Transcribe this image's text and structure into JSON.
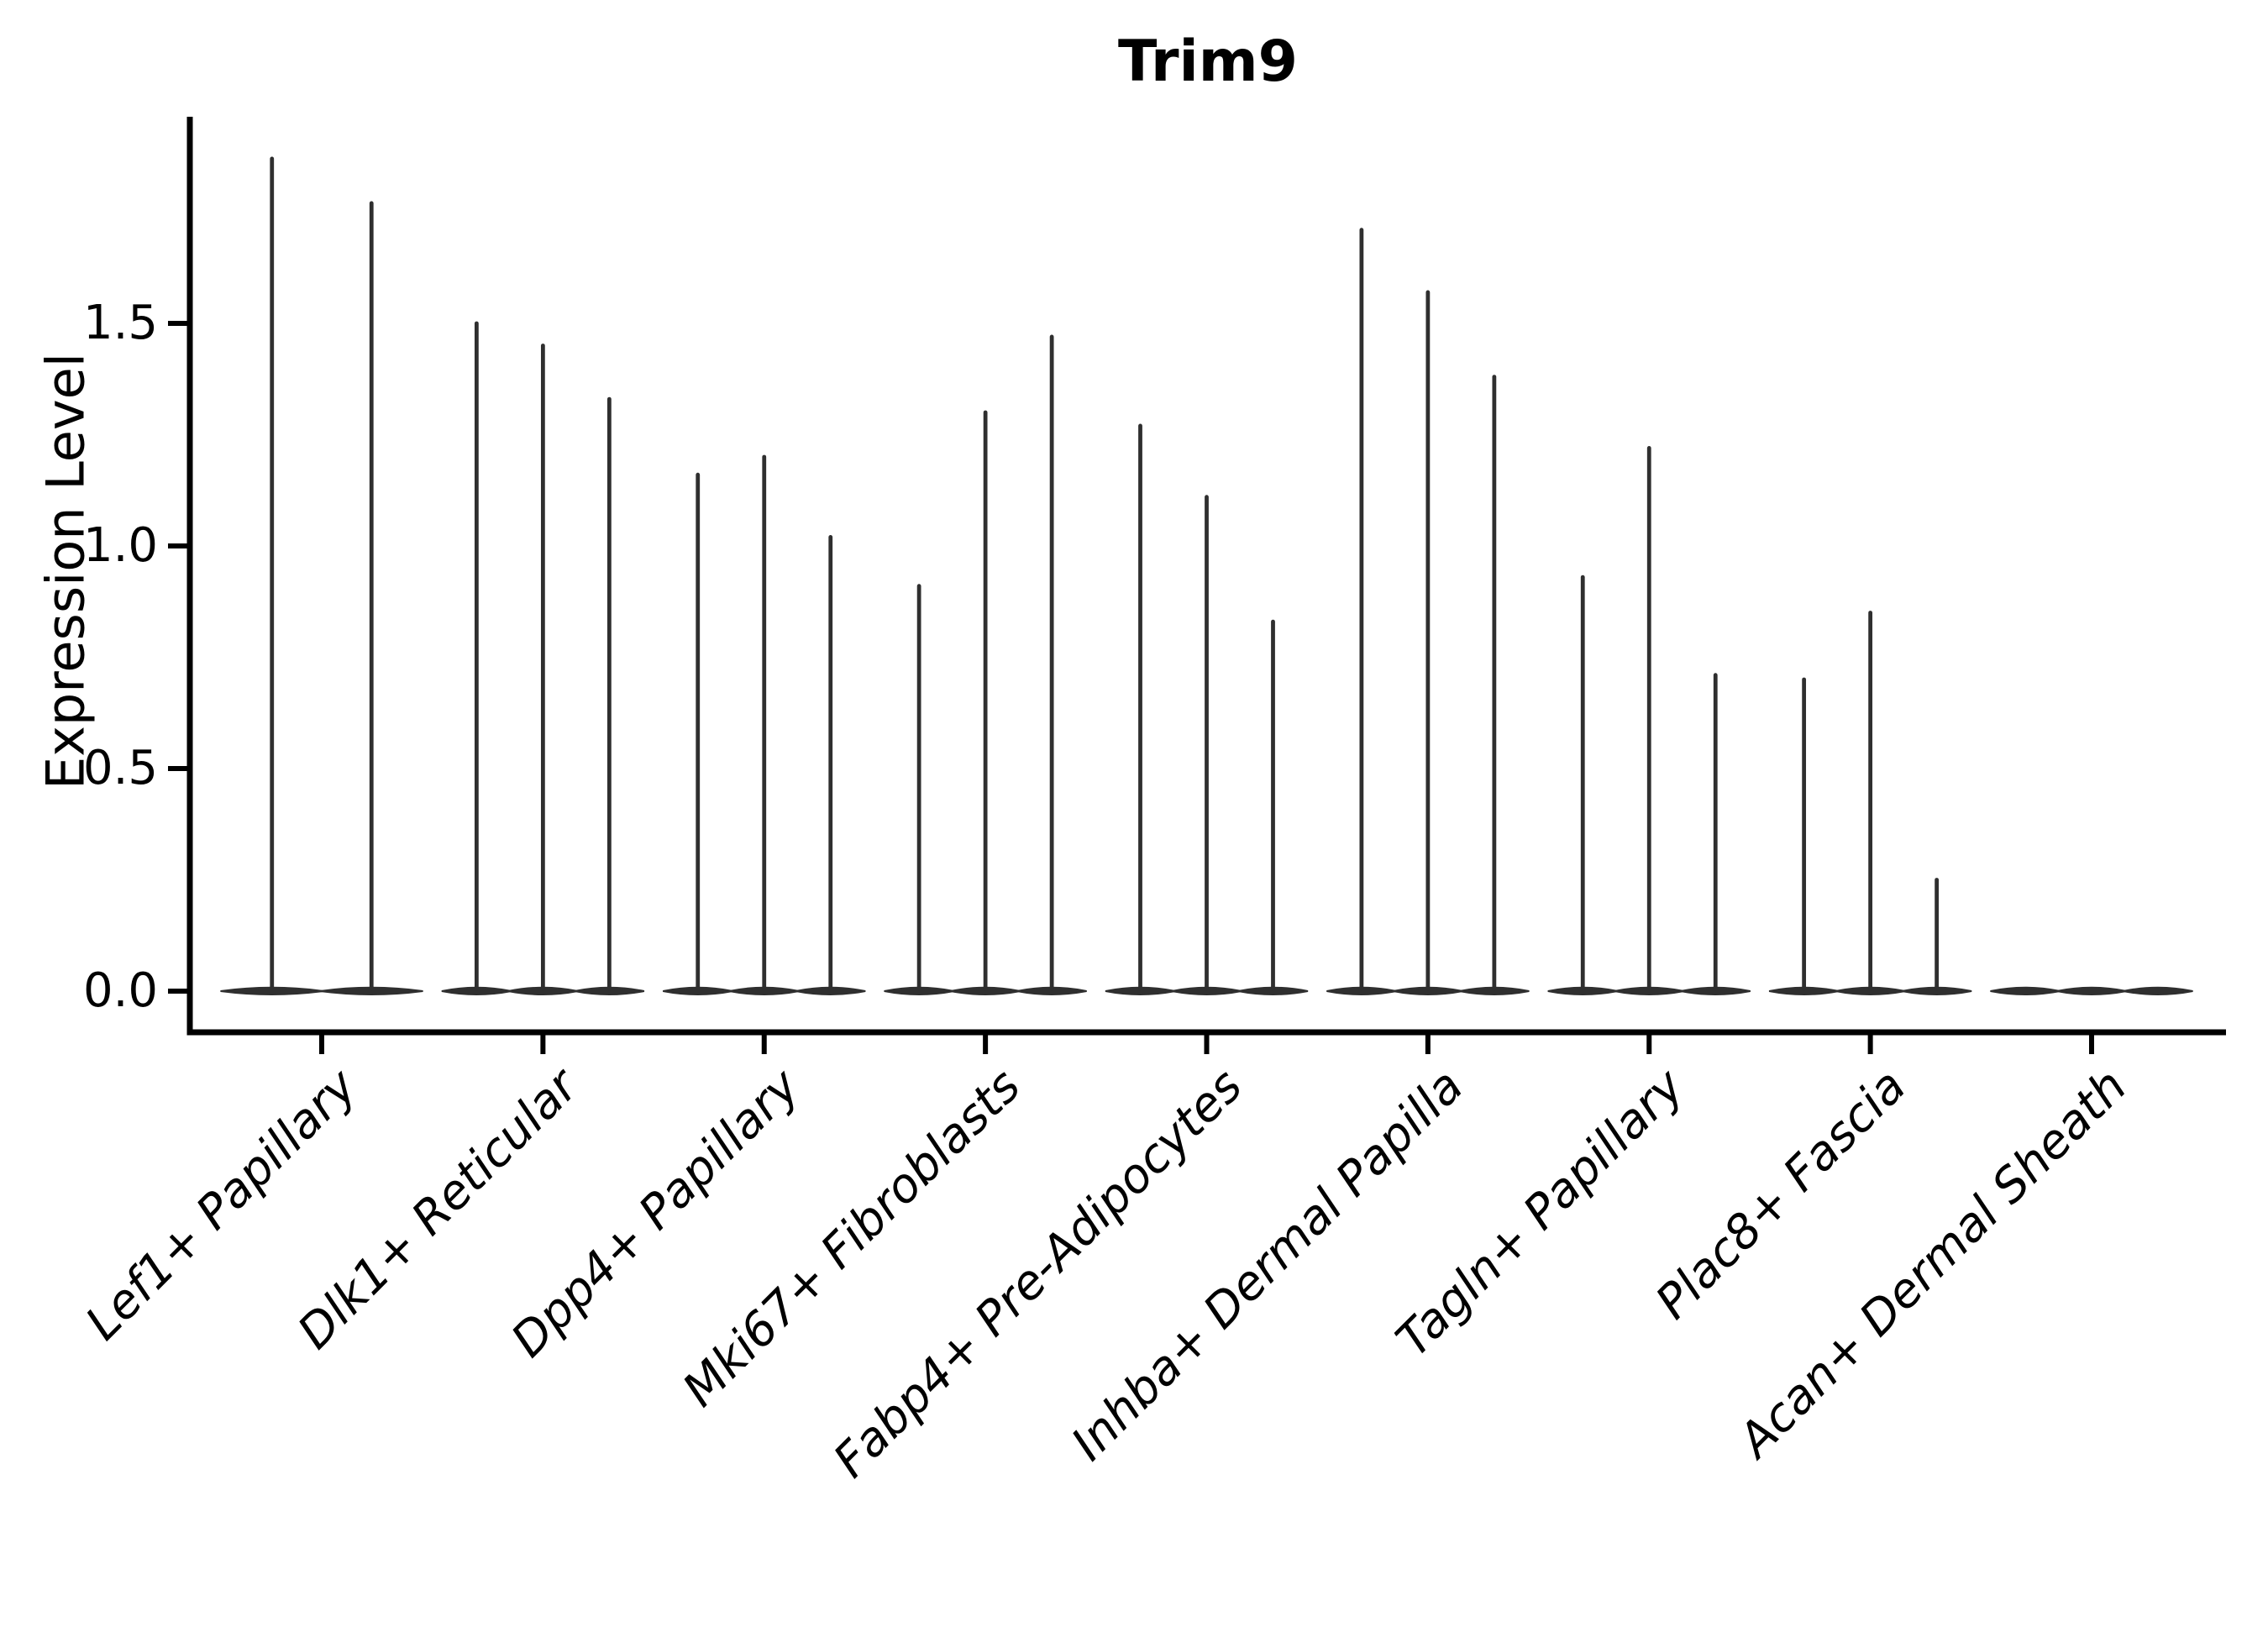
{
  "title": "Trim9",
  "y_axis": {
    "label": "Expression Level",
    "ticks": [
      "0.0",
      "0.5",
      "1.0",
      "1.5"
    ]
  },
  "chart_data": {
    "type": "violin",
    "title": "Trim9",
    "xlabel": "",
    "ylabel": "Expression Level",
    "ylim": [
      -0.09,
      1.97
    ],
    "yticks": [
      0.0,
      0.5,
      1.0,
      1.5
    ],
    "grid": false,
    "legend": "none",
    "categories": [
      "Lef1+ Papillary",
      "Dlk1+ Reticular",
      "Dpp4+ Papillary",
      "Mki67+ Fibroblasts",
      "Fabp4+ Pre-Adipocytes",
      "Inhba+ Dermal Papilla",
      "Tagln+ Papillary",
      "Plac8+ Fascia",
      "Acan+ Dermal Sheath"
    ],
    "groups": [
      {
        "category": "Lef1+ Papillary",
        "violin_max": [
          1.87,
          1.77
        ]
      },
      {
        "category": "Dlk1+ Reticular",
        "violin_max": [
          1.5,
          1.45,
          1.33
        ]
      },
      {
        "category": "Dpp4+ Papillary",
        "violin_max": [
          1.16,
          1.2,
          1.02
        ]
      },
      {
        "category": "Mki67+ Fibroblasts",
        "violin_max": [
          0.91,
          1.3,
          1.47
        ]
      },
      {
        "category": "Fabp4+ Pre-Adipocytes",
        "violin_max": [
          1.27,
          1.11,
          0.83
        ]
      },
      {
        "category": "Inhba+ Dermal Papilla",
        "violin_max": [
          1.71,
          1.57,
          1.38
        ]
      },
      {
        "category": "Tagln+ Papillary",
        "violin_max": [
          0.93,
          1.22,
          0.71
        ]
      },
      {
        "category": "Plac8+ Fascia",
        "violin_max": [
          0.7,
          0.85,
          0.25
        ]
      },
      {
        "category": "Acan+ Dermal Sheath",
        "violin_max": [
          0.0,
          0.0,
          0.0
        ]
      }
    ],
    "colors": {
      "violin": "#2f2f2f",
      "axis": "#000000",
      "text": "#000000",
      "background": "#ffffff"
    }
  }
}
